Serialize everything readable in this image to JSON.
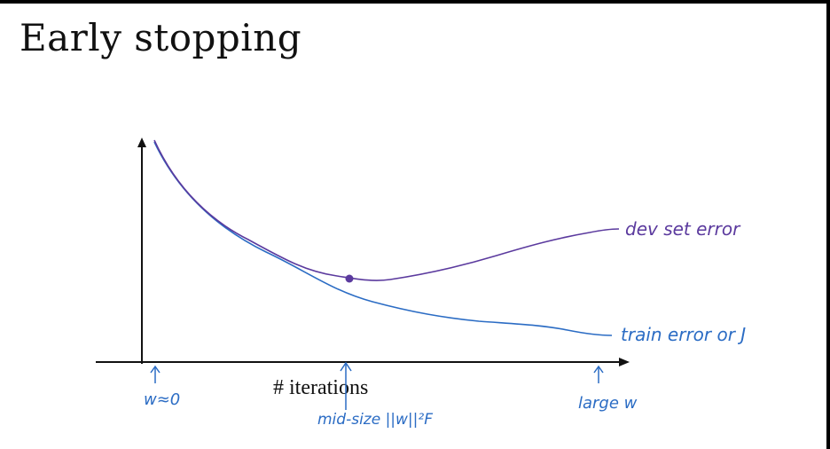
{
  "slide": {
    "title": "Early stopping"
  },
  "diagram": {
    "x_axis_label": "# iterations",
    "curves": {
      "dev": {
        "label": "dev set error",
        "color": "#5b3a9e"
      },
      "train": {
        "label": "train error  or  J",
        "color": "#2b6cc4"
      }
    },
    "annotations": {
      "start": "w≈0",
      "mid": "mid-size ||w||²F",
      "end": "large w"
    }
  }
}
